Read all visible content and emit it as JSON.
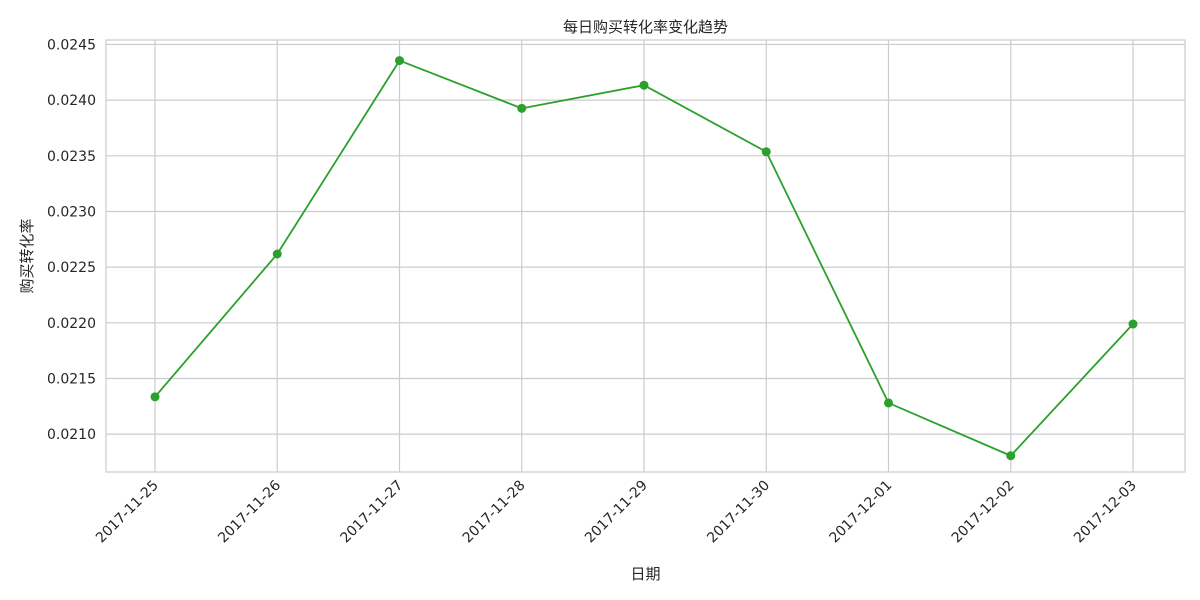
{
  "chart_data": {
    "type": "line",
    "title": "每日购买转化率变化趋势",
    "xlabel": "日期",
    "ylabel": "购买转化率",
    "x": [
      "2017-11-25",
      "2017-11-26",
      "2017-11-27",
      "2017-11-28",
      "2017-11-29",
      "2017-11-30",
      "2017-12-01",
      "2017-12-02",
      "2017-12-03"
    ],
    "series": [
      {
        "values": [
          0.021335,
          0.022618,
          0.024355,
          0.023926,
          0.024134,
          0.023536,
          0.02128,
          0.020806,
          0.021989
        ],
        "color": "#2ca02c",
        "marker": "circle"
      }
    ],
    "ylim": [
      0.02066,
      0.02454
    ],
    "yticks": [
      "0.0210",
      "0.0215",
      "0.0220",
      "0.0225",
      "0.0230",
      "0.0235",
      "0.0240",
      "0.0245"
    ],
    "grid": true,
    "legend": "none"
  }
}
